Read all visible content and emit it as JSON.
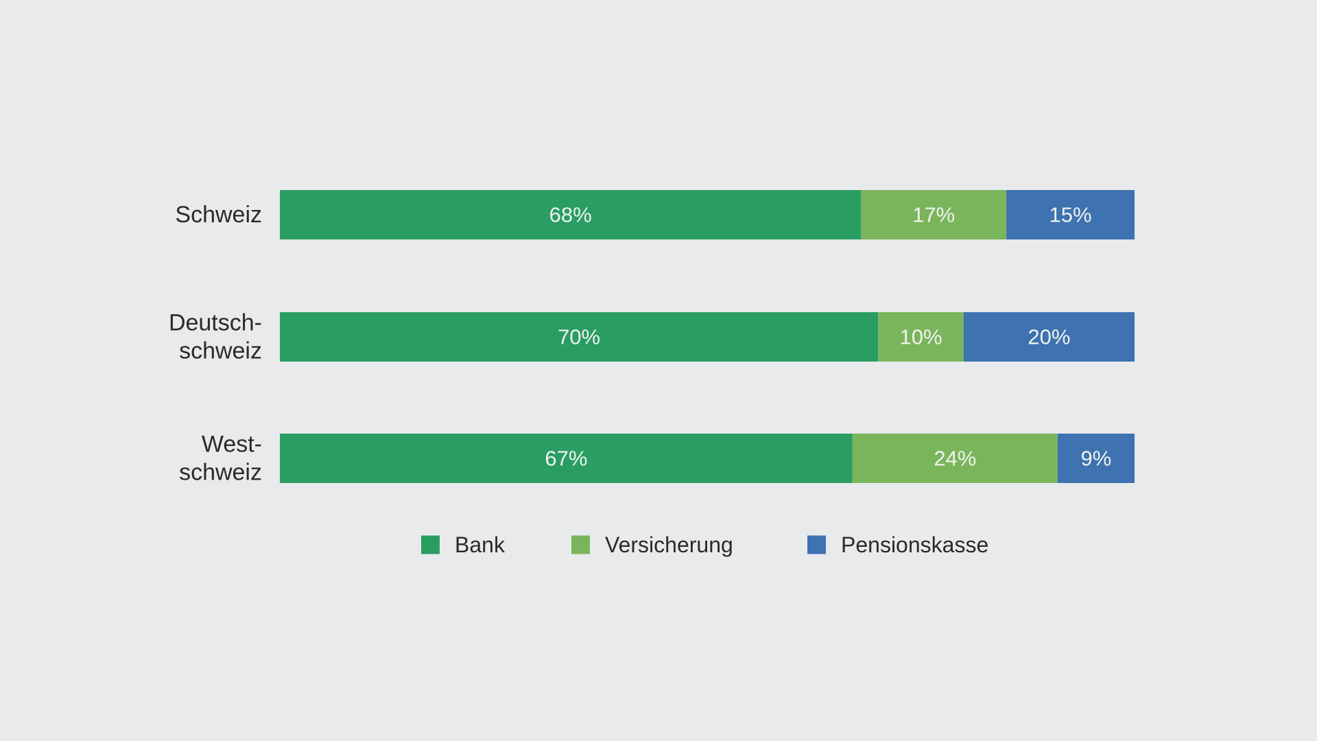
{
  "chart_data": {
    "type": "bar",
    "orientation": "horizontal",
    "stacked": true,
    "percent_stacked": true,
    "categories": [
      [
        "Schweiz"
      ],
      [
        "Deutsch-",
        "schweiz"
      ],
      [
        "West-",
        "schweiz"
      ]
    ],
    "series": [
      {
        "name": "Bank",
        "color": "#2a9d63",
        "values": [
          68,
          70,
          67
        ],
        "labels": [
          "68%",
          "70%",
          "67%"
        ]
      },
      {
        "name": "Versicherung",
        "color": "#7ab55c",
        "values": [
          17,
          10,
          24
        ],
        "labels": [
          "17%",
          "10%",
          "24%"
        ]
      },
      {
        "name": "Pensionskasse",
        "color": "#3e72b0",
        "values": [
          15,
          20,
          9
        ],
        "labels": [
          "15%",
          "20%",
          "9%"
        ]
      }
    ],
    "xlim": [
      0,
      100
    ],
    "grid": false,
    "legend_position": "bottom"
  }
}
